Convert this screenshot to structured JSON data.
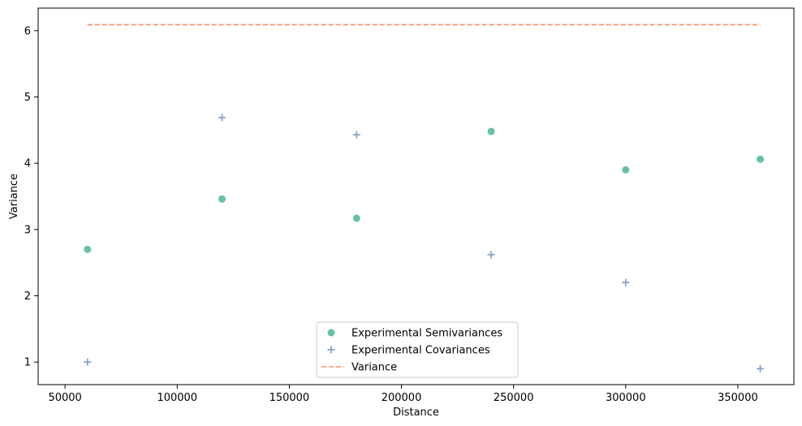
{
  "chart_data": {
    "type": "scatter",
    "title": "",
    "xlabel": "Distance",
    "ylabel": "Variance",
    "xlim": [
      38000,
      375000
    ],
    "ylim": [
      0.66,
      6.34
    ],
    "x_ticks": [
      50000,
      100000,
      150000,
      200000,
      250000,
      300000,
      350000
    ],
    "x_tick_labels": [
      "50000",
      "100000",
      "150000",
      "200000",
      "250000",
      "300000",
      "350000"
    ],
    "y_ticks": [
      1,
      2,
      3,
      4,
      5,
      6
    ],
    "y_tick_labels": [
      "1",
      "2",
      "3",
      "4",
      "5",
      "6"
    ],
    "grid": false,
    "legend_position": "bottom-center",
    "series": [
      {
        "name": "Experimental Semivariances",
        "type": "scatter",
        "marker": "circle",
        "color": "#66c2a5",
        "x": [
          60000,
          120000,
          180000,
          240000,
          300000,
          360000
        ],
        "y": [
          2.7,
          3.46,
          3.17,
          4.48,
          3.9,
          4.06
        ]
      },
      {
        "name": "Experimental Covariances",
        "type": "scatter",
        "marker": "plus",
        "color": "#8da0cb",
        "x": [
          60000,
          120000,
          180000,
          240000,
          300000,
          360000
        ],
        "y": [
          1.0,
          4.69,
          4.43,
          2.62,
          2.2,
          0.9
        ]
      },
      {
        "name": "Variance",
        "type": "line",
        "style": "dashed",
        "color": "#fc8d62",
        "x": [
          60000,
          360000
        ],
        "y": [
          6.09,
          6.09
        ]
      }
    ]
  }
}
